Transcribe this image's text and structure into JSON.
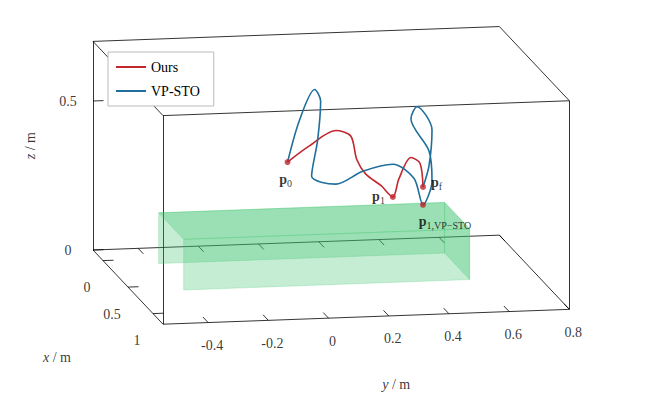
{
  "chart_data": {
    "type": "line3d",
    "xlabel": "x / m",
    "ylabel": "y / m",
    "zlabel": "z / m",
    "xlim": [
      -0.2,
      1.2
    ],
    "ylim": [
      -0.55,
      0.8
    ],
    "zlim": [
      0,
      0.7
    ],
    "xticks": [
      0,
      0.5,
      1
    ],
    "yticks": [
      -0.4,
      -0.2,
      0,
      0.2,
      0.4,
      0.6,
      0.8
    ],
    "zticks": [
      0,
      0.5
    ],
    "legend": "upper left",
    "series": [
      {
        "name": "Ours",
        "color": "#c1272d",
        "x": [
          0.5,
          0.5,
          0.5,
          0.5,
          0.5,
          0.5,
          0.5,
          0.5,
          0.5,
          0.5,
          0.5,
          0.5
        ],
        "y": [
          -0.02,
          0.05,
          0.14,
          0.19,
          0.21,
          0.24,
          0.29,
          0.33,
          0.35,
          0.39,
          0.42,
          0.43
        ],
        "z": [
          0.4,
          0.45,
          0.5,
          0.48,
          0.4,
          0.35,
          0.31,
          0.27,
          0.33,
          0.4,
          0.38,
          0.3
        ]
      },
      {
        "name": "VP-STO",
        "color": "#1f6e9c",
        "x": [
          0.5,
          0.5,
          0.5,
          0.5,
          0.5,
          0.5,
          0.5,
          0.5,
          0.5,
          0.5,
          0.5,
          0.5,
          0.5,
          0.5,
          0.5,
          0.5,
          0.5,
          0.5
        ],
        "y": [
          -0.02,
          0.02,
          0.07,
          0.09,
          0.08,
          0.06,
          0.14,
          0.23,
          0.33,
          0.4,
          0.43,
          0.46,
          0.45,
          0.39,
          0.41,
          0.46,
          0.45,
          0.43
        ],
        "z": [
          0.4,
          0.54,
          0.64,
          0.6,
          0.47,
          0.35,
          0.32,
          0.36,
          0.38,
          0.33,
          0.24,
          0.32,
          0.42,
          0.53,
          0.57,
          0.49,
          0.37,
          0.3
        ]
      }
    ],
    "points": [
      {
        "label": "p",
        "subscript": "0",
        "x": 0.5,
        "y": -0.02,
        "z": 0.4,
        "color": "#c1272d"
      },
      {
        "label": "p",
        "subscript": "1",
        "x": 0.5,
        "y": 0.33,
        "z": 0.27,
        "color": "#c1272d"
      },
      {
        "label": "p",
        "subscript": "f",
        "x": 0.5,
        "y": 0.43,
        "z": 0.3,
        "color": "#c1272d"
      },
      {
        "label": "p",
        "subscript": "1,VP−STO",
        "x": 0.5,
        "y": 0.43,
        "z": 0.24,
        "color": "#c1272d"
      }
    ],
    "obstacle": {
      "xlim": [
        0.09,
        0.59
      ],
      "ylim": [
        -0.38,
        0.57
      ],
      "zlim": [
        0,
        0.17
      ],
      "color": "#3cc46e"
    }
  }
}
